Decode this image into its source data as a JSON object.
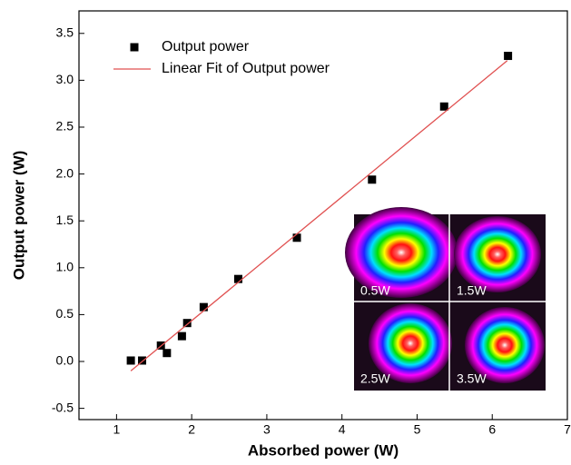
{
  "chart_data": {
    "type": "scatter",
    "x_label": "Absorbed power (W)",
    "y_label": "Output power (W)",
    "xlim": [
      0.5,
      7
    ],
    "ylim": [
      -0.62,
      3.74
    ],
    "xticks": [
      1,
      2,
      3,
      4,
      5,
      6,
      7
    ],
    "yticks": [
      -0.5,
      {
        "value": 0,
        "label": "0.0"
      },
      0.5,
      {
        "value": 1,
        "label": "1.0"
      },
      1.5,
      {
        "value": 2,
        "label": "2.0"
      },
      2.5,
      {
        "value": 3,
        "label": "3.0"
      },
      3.5
    ],
    "legend": "upper left",
    "series": [
      {
        "name": "Output power",
        "color": "#000000",
        "style": "square",
        "x": [
          1.19,
          1.34,
          1.59,
          1.67,
          1.87,
          1.94,
          2.16,
          2.62,
          3.4,
          4.4,
          5.36,
          6.21
        ],
        "values": [
          0.01,
          0.01,
          0.17,
          0.09,
          0.27,
          0.41,
          0.58,
          0.88,
          1.32,
          1.94,
          2.72,
          3.26
        ]
      },
      {
        "name": "Linear Fit of Output power",
        "color": "#e05050",
        "style": "line",
        "x": [
          1.19,
          6.2
        ],
        "values": [
          -0.1,
          3.21
        ]
      }
    ],
    "inset": {
      "labels": [
        "0.5W",
        "1.5W",
        "2.5W",
        "3.5W"
      ]
    }
  }
}
